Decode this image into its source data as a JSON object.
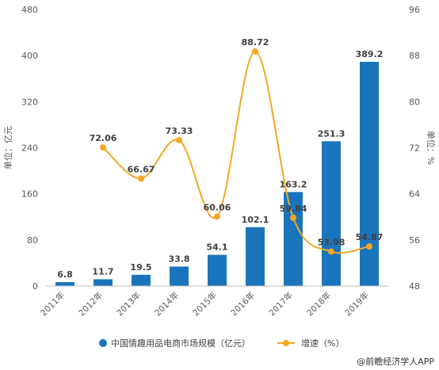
{
  "chart_data": {
    "type": "bar+line",
    "categories": [
      "2011年",
      "2012年",
      "2013年",
      "2014年",
      "2015年",
      "2016年",
      "2017年",
      "2018年",
      "2019年"
    ],
    "series": [
      {
        "name": "中国情趣用品电商市场规模（亿元）",
        "type": "bar",
        "axis": "left",
        "values": [
          6.8,
          11.7,
          19.5,
          33.8,
          54.1,
          102.1,
          163.2,
          251.3,
          389.2
        ],
        "color": "#1a75bc"
      },
      {
        "name": "增速（%）",
        "type": "line",
        "axis": "right",
        "values": [
          null,
          72.06,
          66.67,
          73.33,
          60.06,
          88.72,
          59.84,
          53.98,
          54.87
        ],
        "color": "#f5a623"
      }
    ],
    "ylabel": "单位：亿元",
    "y2label": "单位：%",
    "ylim": [
      0,
      480
    ],
    "yticks": [
      0,
      80,
      160,
      240,
      320,
      400,
      480
    ],
    "y2lim": [
      48,
      96
    ],
    "y2ticks": [
      48,
      56,
      64,
      72,
      80,
      88,
      96
    ],
    "grid": false,
    "legend": "bottom"
  },
  "footer": {
    "source": "@前瞻经济学人APP"
  }
}
